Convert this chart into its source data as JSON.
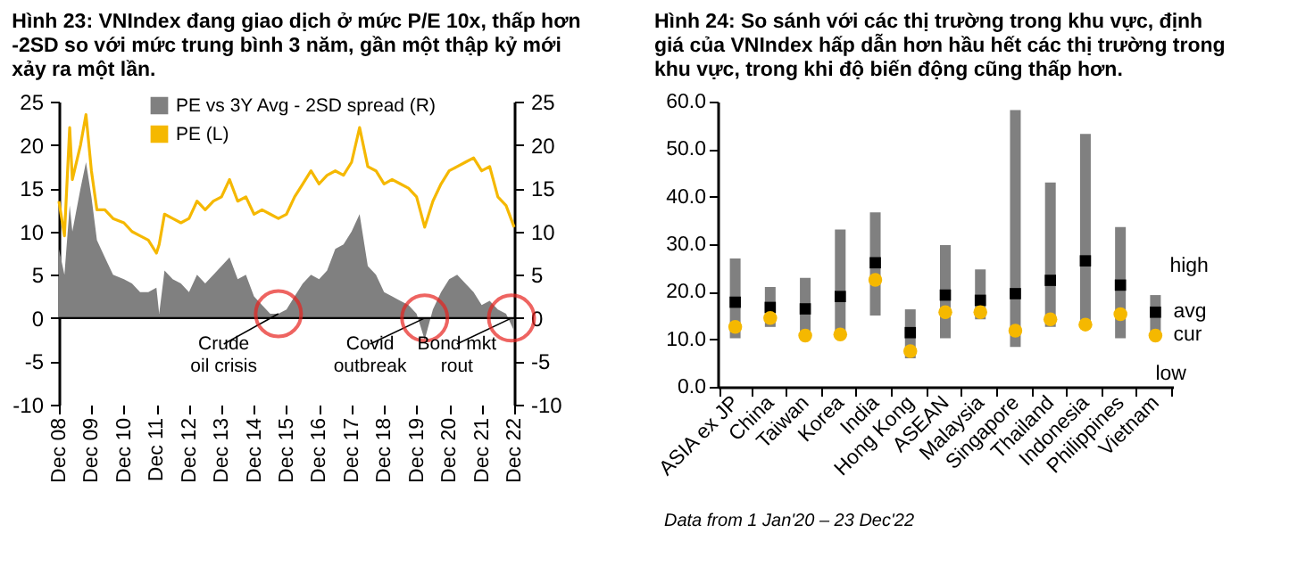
{
  "chart_data": [
    {
      "type": "area",
      "title": "Hình 23: VNIndex đang giao dịch ở mức P/E 10x, thấp hơn -2SD so với mức trung bình 3 năm, gần một thập kỷ mới xảy ra một lần.",
      "x": [
        "2008-12",
        "2009-02",
        "2009-04",
        "2009-05",
        "2009-08",
        "2009-10",
        "2009-12",
        "2010-02",
        "2010-05",
        "2010-08",
        "2010-12",
        "2011-03",
        "2011-06",
        "2011-09",
        "2011-12",
        "2012-01",
        "2012-03",
        "2012-06",
        "2012-09",
        "2012-12",
        "2013-03",
        "2013-06",
        "2013-09",
        "2013-12",
        "2014-03",
        "2014-06",
        "2014-09",
        "2014-12",
        "2015-03",
        "2015-06",
        "2015-09",
        "2015-12",
        "2016-03",
        "2016-06",
        "2016-09",
        "2016-12",
        "2017-03",
        "2017-06",
        "2017-09",
        "2017-12",
        "2018-03",
        "2018-06",
        "2018-09",
        "2018-12",
        "2019-03",
        "2019-06",
        "2019-09",
        "2019-12",
        "2020-03",
        "2020-06",
        "2020-09",
        "2020-12",
        "2021-03",
        "2021-06",
        "2021-09",
        "2021-12",
        "2022-03",
        "2022-06",
        "2022-09",
        "2022-12"
      ],
      "series": [
        {
          "name": "PE vs 3Y Avg - 2SD spread (R)",
          "type": "area",
          "axis": "y2",
          "color": "#808080",
          "values": [
            8,
            5,
            13,
            10,
            15,
            18,
            14,
            9,
            7,
            5,
            4.5,
            4,
            3,
            3,
            3.5,
            0.5,
            5.5,
            4.5,
            4,
            3,
            5,
            4,
            5,
            6,
            7,
            4.5,
            5,
            2.5,
            1.5,
            0.5,
            0.5,
            1,
            2.5,
            4,
            5,
            4.5,
            5.5,
            8,
            8.5,
            10,
            12,
            6,
            5,
            3,
            2.5,
            2,
            1.5,
            0.5,
            -2.5,
            1,
            3,
            4.5,
            5,
            4,
            3,
            1.5,
            2,
            1,
            0.5,
            -1.5
          ]
        },
        {
          "name": "PE (L)",
          "type": "line",
          "color": "#f5b800",
          "values": [
            13.5,
            9.5,
            22,
            16,
            20,
            23.5,
            17,
            12.5,
            12.5,
            11.5,
            11,
            10,
            9.5,
            9,
            7.5,
            8.5,
            12,
            11.5,
            11,
            11.5,
            13.5,
            12.5,
            13.5,
            14,
            16,
            13.5,
            14,
            12,
            12.5,
            12,
            11.5,
            12,
            14,
            15.5,
            17,
            15.5,
            16.5,
            17,
            16.5,
            18,
            22,
            17.5,
            17,
            15.5,
            16,
            15.5,
            15,
            14,
            10.5,
            13.5,
            15.5,
            17,
            17.5,
            18,
            18.5,
            17,
            17.5,
            14,
            13,
            10.5
          ]
        }
      ],
      "xlim": [
        "2008-12",
        "2022-12"
      ],
      "xticks": [
        {
          "value": "2008-12",
          "label": "Dec 08"
        },
        {
          "value": "2009-12",
          "label": "Dec 09"
        },
        {
          "value": "2010-12",
          "label": "Dec 10"
        },
        {
          "value": "2011-12",
          "label": "Dec 11"
        },
        {
          "value": "2012-12",
          "label": "Dec 12"
        },
        {
          "value": "2013-12",
          "label": "Dec 13"
        },
        {
          "value": "2014-12",
          "label": "Dec 14"
        },
        {
          "value": "2015-12",
          "label": "Dec 15"
        },
        {
          "value": "2016-12",
          "label": "Dec 16"
        },
        {
          "value": "2017-12",
          "label": "Dec 17"
        },
        {
          "value": "2018-12",
          "label": "Dec 18"
        },
        {
          "value": "2019-12",
          "label": "Dec 19"
        },
        {
          "value": "2020-12",
          "label": "Dec 20"
        },
        {
          "value": "2021-12",
          "label": "Dec 21"
        },
        {
          "value": "2022-12",
          "label": "Dec 22"
        }
      ],
      "ylim": [
        -10,
        25
      ],
      "yticks": [
        -10,
        -5,
        0,
        5,
        10,
        15,
        20,
        25
      ],
      "y2lim": [
        -10,
        25
      ],
      "y2ticks": [
        -10,
        -5,
        0,
        5,
        10,
        15,
        20,
        25
      ],
      "legend": "top",
      "annotations": [
        {
          "text": "Crude\noil crisis",
          "x": "2015-09",
          "y": 0.5
        },
        {
          "text": "Covid\noutbreak",
          "x": "2020-03",
          "y": 0
        },
        {
          "text": "Bond mkt\nrout",
          "x": "2022-11",
          "y": 0
        }
      ]
    },
    {
      "type": "bar",
      "title": "Hình 24: So sánh với các thị trường trong khu vực, định giá của VNIndex hấp dẫn hơn hầu hết các thị trường trong khu vực, trong khi độ biến động cũng thấp hơn.",
      "categories": [
        "ASIA ex JP",
        "China",
        "Taiwan",
        "Korea",
        "India",
        "Hong Kong",
        "ASEAN",
        "Malaysia",
        "Singapore",
        "Thailand",
        "Indonesia",
        "Philippines",
        "Vietnam"
      ],
      "series": [
        {
          "type": "bar",
          "color": "#808080",
          "base": [
            10.2,
            12.6,
            10.2,
            10.2,
            15,
            6,
            10.2,
            14.2,
            8.4,
            12.6,
            12.5,
            10.2,
            10.2
          ],
          "values": [
            16.8,
            8.4,
            12.7,
            22.9,
            21.7,
            10.3,
            19.6,
            10.5,
            49.8,
            30.4,
            40.7,
            23.4,
            9.1
          ]
        },
        {
          "type": "scatter",
          "name": "avg",
          "marker": "square",
          "color": "#000000",
          "values": [
            17.8,
            16.7,
            16.4,
            19,
            26.1,
            11.4,
            19.3,
            18.2,
            19.6,
            22.4,
            26.5,
            21.4,
            15.7
          ]
        },
        {
          "type": "scatter",
          "name": "cur",
          "marker": "circle",
          "color": "#f5b800",
          "values": [
            12.6,
            14.5,
            10.8,
            11,
            22.5,
            7.5,
            15.7,
            15.7,
            11.8,
            14.2,
            13.1,
            15.3,
            10.8
          ]
        }
      ],
      "ylim": [
        0,
        60
      ],
      "yticks": [
        {
          "value": 0,
          "label": "0.0"
        },
        {
          "value": 10,
          "label": "10.0"
        },
        {
          "value": 20,
          "label": "20.0"
        },
        {
          "value": 30,
          "label": "30.0"
        },
        {
          "value": 40,
          "label": "40.0"
        },
        {
          "value": 50,
          "label": "50.0"
        },
        {
          "value": 60,
          "label": "60.0"
        }
      ],
      "annotations": [
        {
          "text": "high",
          "x": "Vietnam",
          "y": 19.3
        },
        {
          "text": "low",
          "x": "Vietnam",
          "y": 10.2
        },
        "Data from 1 Jan'20 – 23 Dec'22"
      ]
    }
  ]
}
